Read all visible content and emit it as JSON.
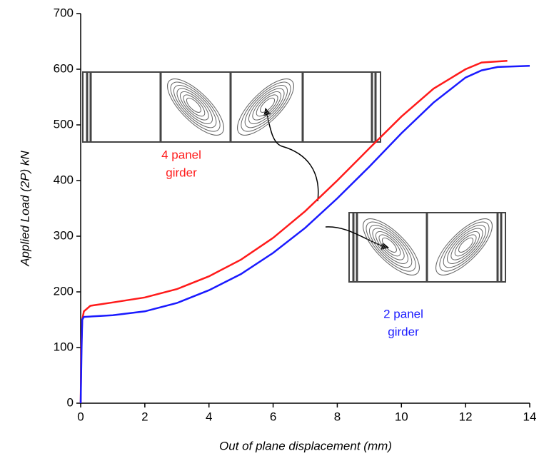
{
  "chart_data": {
    "type": "line",
    "xlabel": "Out of plane displacement (mm)",
    "ylabel": "Applied Load (2P) kN",
    "xlim": [
      0,
      14
    ],
    "xticks": [
      0,
      2,
      4,
      6,
      8,
      10,
      12,
      14
    ],
    "ylim": [
      0,
      700
    ],
    "yticks": [
      0,
      100,
      200,
      300,
      400,
      500,
      600,
      700
    ],
    "series": [
      {
        "color": "#ff1a1a",
        "x": [
          0,
          0.02,
          0.05,
          0.1,
          0.3,
          1,
          2,
          3,
          4,
          5,
          6,
          7,
          8,
          9,
          10,
          11,
          12,
          12.5,
          13,
          13.3
        ],
        "values": [
          0,
          100,
          150,
          165,
          175,
          181,
          190,
          205,
          228,
          258,
          297,
          345,
          400,
          458,
          515,
          565,
          600,
          612,
          614,
          615
        ]
      },
      {
        "color": "#1a1aff",
        "x": [
          0,
          0.03,
          0.05,
          0.1,
          1,
          2,
          3,
          4,
          5,
          6,
          7,
          8,
          9,
          10,
          11,
          12,
          12.5,
          13,
          14
        ],
        "values": [
          0,
          100,
          150,
          155,
          158,
          165,
          180,
          203,
          232,
          270,
          315,
          368,
          425,
          485,
          540,
          585,
          598,
          604,
          606
        ]
      }
    ],
    "annotations": [
      {
        "lines": [
          "4 panel",
          "girder"
        ],
        "color": "#ff1a1a"
      },
      {
        "lines": [
          "2 panel",
          "girder"
        ],
        "color": "#1a1aff"
      }
    ]
  }
}
